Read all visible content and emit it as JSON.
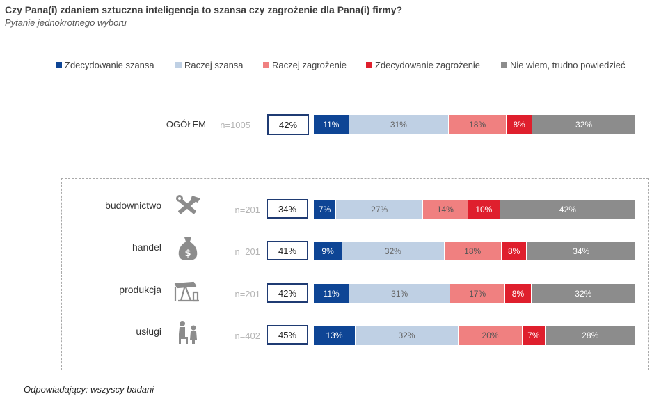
{
  "title": "Czy Pana(i) zdaniem sztuczna inteligencja to szansa czy zagrożenie dla Pana(i) firmy?",
  "subtitle": "Pytanie jednokrotnego wyboru",
  "footnote": "Odpowiadający: wszyscy badani",
  "chart_data": {
    "type": "bar",
    "orientation": "horizontal",
    "stacked": true,
    "title": "Czy Pana(i) zdaniem sztuczna inteligencja to szansa czy zagrożenie dla Pana(i) firmy?",
    "subtitle": "Pytanie jednokrotnego wyboru",
    "categories": [
      "OGÓŁEM",
      "budownictwo",
      "handel",
      "produkcja",
      "usługi"
    ],
    "sample_sizes": [
      "n=1005",
      "n=201",
      "n=201",
      "n=201",
      "n=402"
    ],
    "opportunity_total": [
      "42%",
      "34%",
      "41%",
      "42%",
      "45%"
    ],
    "series": [
      {
        "name": "Zdecydowanie szansa",
        "color": "#0e4595",
        "text_color": "#ffffff",
        "values": [
          11,
          7,
          9,
          11,
          13
        ]
      },
      {
        "name": "Raczej szansa",
        "color": "#bfd0e4",
        "text_color": "#666666",
        "values": [
          31,
          27,
          32,
          31,
          32
        ]
      },
      {
        "name": "Raczej zagrożenie",
        "color": "#f08080",
        "text_color": "#555555",
        "values": [
          18,
          14,
          18,
          17,
          20
        ]
      },
      {
        "name": "Zdecydowanie zagrożenie",
        "color": "#df1f2d",
        "text_color": "#ffffff",
        "values": [
          8,
          10,
          8,
          8,
          7
        ]
      },
      {
        "name": "Nie wiem, trudno powiedzieć",
        "color": "#8c8c8c",
        "text_color": "#ffffff",
        "values": [
          32,
          42,
          34,
          32,
          28
        ]
      }
    ],
    "value_suffix": "%",
    "xlim": [
      0,
      100
    ],
    "legend_position": "top",
    "grouped_categories": [
      "budownictwo",
      "handel",
      "produkcja",
      "usługi"
    ],
    "category_icons": [
      "tools-icon",
      "money-bag-icon",
      "oil-pump-icon",
      "service-person-icon"
    ]
  }
}
